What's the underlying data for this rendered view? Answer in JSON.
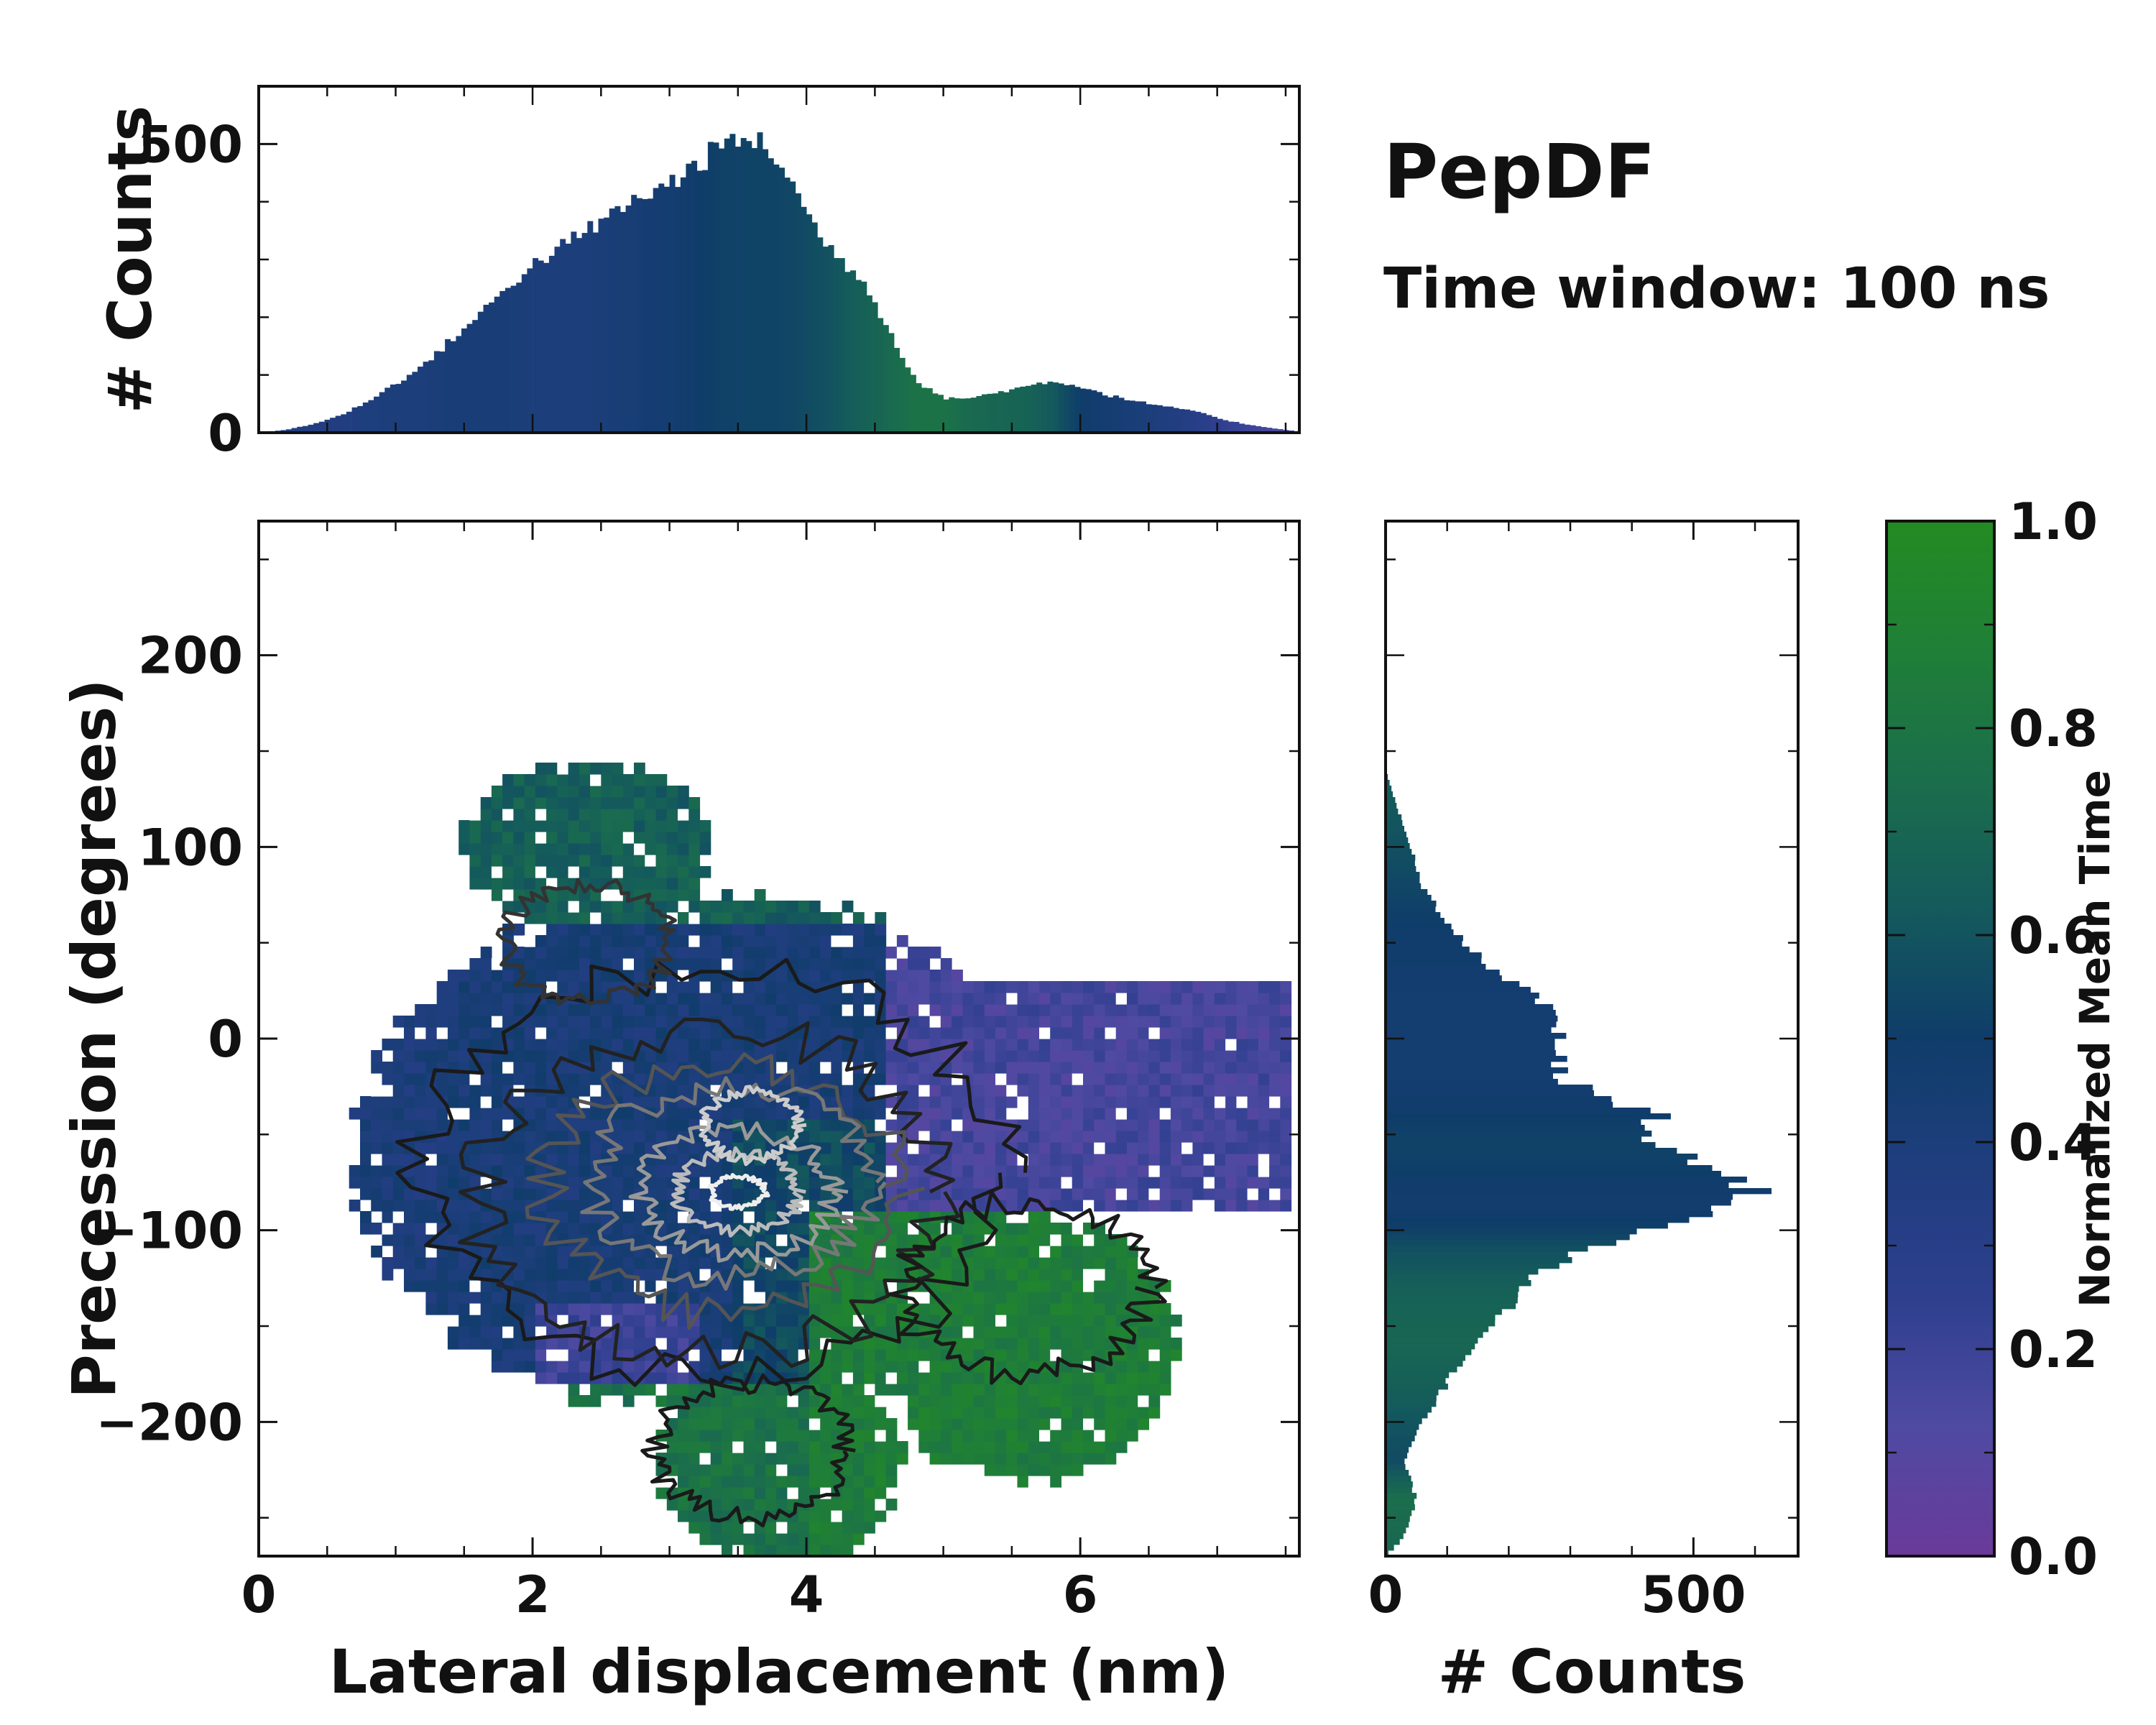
{
  "figure": {
    "title": "PepDF",
    "subtitle": "Time window: 100 ns"
  },
  "colors": {
    "cmap": [
      "#6a3a9a",
      "#4f4aa2",
      "#2e3f8e",
      "#1f3e7e",
      "#0f3d6a",
      "#145a5c",
      "#1b6e4c",
      "#1f7f37",
      "#238b22"
    ]
  },
  "chart_data": [
    {
      "id": "main",
      "type": "heatmap",
      "xlabel": "Lateral displacement (nm)",
      "ylabel": "Precession (degrees)",
      "xlim": [
        0,
        7.6
      ],
      "ylim": [
        -270,
        270
      ],
      "xticks": [
        0,
        2,
        4,
        6
      ],
      "xtick_labels": [
        "0",
        "2",
        "4",
        "6"
      ],
      "yticks": [
        -200,
        -100,
        0,
        100,
        200
      ],
      "ytick_labels": [
        "−200",
        "−100",
        "0",
        "100",
        "200"
      ],
      "bins": {
        "dx": 0.08,
        "dy": 6
      },
      "color_by": "Normalized Mean Time",
      "contours": "density contours (black outer, grey/white inner peaks)",
      "density_peaks": [
        {
          "x": 3.5,
          "y": -80,
          "label": "main peak"
        },
        {
          "x": 3.6,
          "y": -45,
          "label": "secondary peak"
        }
      ]
    },
    {
      "id": "top",
      "type": "bar",
      "ylabel": "# Counts",
      "xlim": [
        0,
        7.6
      ],
      "ylim": [
        0,
        600
      ],
      "yticks": [
        0,
        500
      ],
      "ytick_labels": [
        "0",
        "500"
      ],
      "x": [
        0.0,
        0.2,
        0.4,
        0.6,
        0.8,
        1.0,
        1.2,
        1.4,
        1.6,
        1.8,
        2.0,
        2.2,
        2.4,
        2.6,
        2.8,
        3.0,
        3.2,
        3.4,
        3.6,
        3.8,
        4.0,
        4.2,
        4.4,
        4.6,
        4.8,
        5.0,
        5.2,
        5.4,
        5.6,
        5.8,
        6.0,
        6.2,
        6.4,
        6.6,
        6.8,
        7.0,
        7.2,
        7.4,
        7.6
      ],
      "values": [
        0,
        5,
        15,
        30,
        55,
        85,
        115,
        160,
        200,
        250,
        290,
        320,
        350,
        380,
        410,
        430,
        465,
        500,
        510,
        475,
        380,
        310,
        270,
        180,
        90,
        60,
        60,
        70,
        80,
        90,
        80,
        65,
        55,
        45,
        40,
        25,
        15,
        8,
        2
      ],
      "mean_time": [
        0.35,
        0.35,
        0.35,
        0.35,
        0.38,
        0.4,
        0.4,
        0.42,
        0.42,
        0.42,
        0.4,
        0.4,
        0.4,
        0.42,
        0.44,
        0.46,
        0.5,
        0.52,
        0.53,
        0.53,
        0.56,
        0.6,
        0.66,
        0.72,
        0.78,
        0.78,
        0.72,
        0.7,
        0.68,
        0.62,
        0.5,
        0.45,
        0.42,
        0.38,
        0.32,
        0.25,
        0.2,
        0.15,
        0.12
      ]
    },
    {
      "id": "right",
      "type": "bar",
      "orientation": "horizontal",
      "xlabel": "# Counts",
      "xlim": [
        0,
        670
      ],
      "xticks": [
        0,
        500
      ],
      "xtick_labels": [
        "0",
        "500"
      ],
      "ylim": [
        -270,
        270
      ],
      "y": [
        140,
        120,
        100,
        80,
        60,
        40,
        20,
        0,
        -20,
        -30,
        -40,
        -50,
        -60,
        -70,
        -80,
        -90,
        -100,
        -110,
        -120,
        -130,
        -140,
        -160,
        -180,
        -200,
        -220,
        -240,
        -260,
        -270
      ],
      "values": [
        0,
        20,
        40,
        60,
        100,
        160,
        250,
        290,
        280,
        350,
        440,
        420,
        470,
        540,
        600,
        540,
        420,
        320,
        260,
        220,
        200,
        140,
        100,
        60,
        30,
        50,
        30,
        0
      ],
      "mean_time": [
        0.65,
        0.62,
        0.58,
        0.54,
        0.5,
        0.48,
        0.46,
        0.46,
        0.46,
        0.48,
        0.5,
        0.52,
        0.52,
        0.5,
        0.48,
        0.48,
        0.52,
        0.58,
        0.62,
        0.66,
        0.68,
        0.7,
        0.66,
        0.6,
        0.56,
        0.75,
        0.72,
        0.7
      ]
    },
    {
      "id": "colorbar",
      "type": "colorbar",
      "label": "Normalized Mean Time",
      "range": [
        0,
        1
      ],
      "ticks": [
        0.0,
        0.2,
        0.4,
        0.6,
        0.8,
        1.0
      ],
      "tick_labels": [
        "0.0",
        "0.2",
        "0.4",
        "0.6",
        "0.8",
        "1.0"
      ]
    }
  ]
}
